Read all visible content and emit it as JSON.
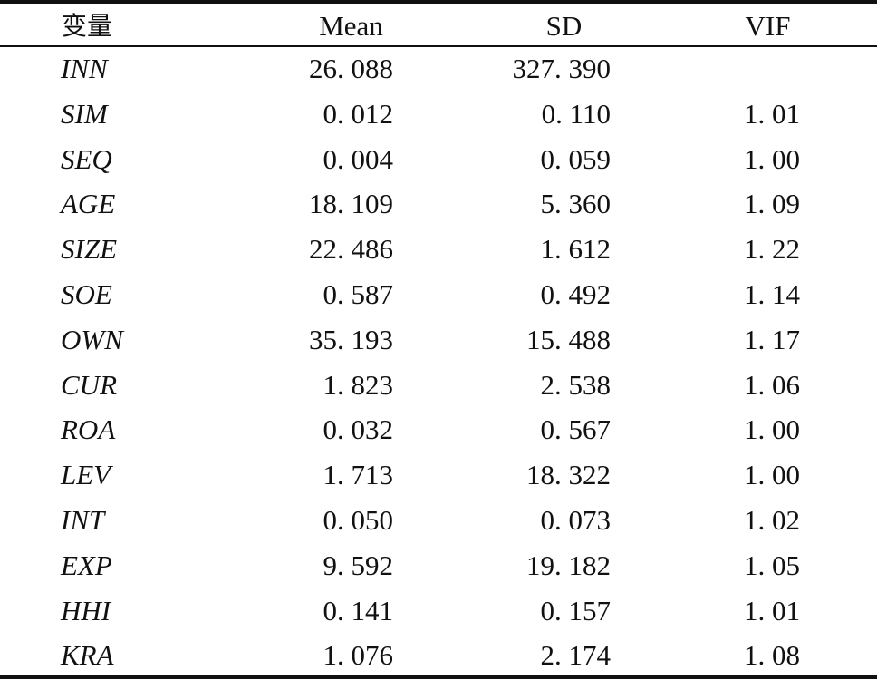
{
  "headers": {
    "variable": "变量",
    "mean": "Mean",
    "sd": "SD",
    "vif": "VIF"
  },
  "rows": [
    {
      "variable": "INN",
      "mean": "26. 088",
      "sd": "327. 390",
      "vif": ""
    },
    {
      "variable": "SIM",
      "mean": "0. 012",
      "sd": "0. 110",
      "vif": "1. 01"
    },
    {
      "variable": "SEQ",
      "mean": "0. 004",
      "sd": "0. 059",
      "vif": "1. 00"
    },
    {
      "variable": "AGE",
      "mean": "18. 109",
      "sd": "5. 360",
      "vif": "1. 09"
    },
    {
      "variable": "SIZE",
      "mean": "22. 486",
      "sd": "1. 612",
      "vif": "1. 22"
    },
    {
      "variable": "SOE",
      "mean": "0. 587",
      "sd": "0. 492",
      "vif": "1. 14"
    },
    {
      "variable": "OWN",
      "mean": "35. 193",
      "sd": "15. 488",
      "vif": "1. 17"
    },
    {
      "variable": "CUR",
      "mean": "1. 823",
      "sd": "2. 538",
      "vif": "1. 06"
    },
    {
      "variable": "ROA",
      "mean": "0. 032",
      "sd": "0. 567",
      "vif": "1. 00"
    },
    {
      "variable": "LEV",
      "mean": "1. 713",
      "sd": "18. 322",
      "vif": "1. 00"
    },
    {
      "variable": "INT",
      "mean": "0. 050",
      "sd": "0. 073",
      "vif": "1. 02"
    },
    {
      "variable": "EXP",
      "mean": "9. 592",
      "sd": "19. 182",
      "vif": "1. 05"
    },
    {
      "variable": "HHI",
      "mean": "0. 141",
      "sd": "0. 157",
      "vif": "1. 01"
    },
    {
      "variable": "KRA",
      "mean": "1. 076",
      "sd": "2. 174",
      "vif": "1. 08"
    }
  ]
}
